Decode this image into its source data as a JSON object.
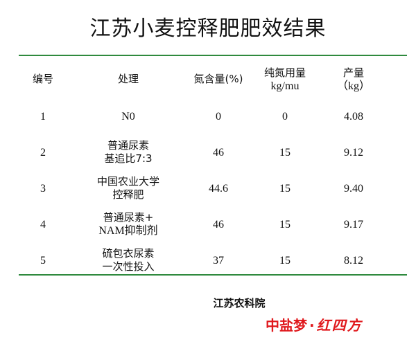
{
  "title": "江苏小麦控释肥肥效结果",
  "table": {
    "headers": {
      "id": [
        "编号"
      ],
      "treatment": [
        "处理"
      ],
      "n_content": [
        "氮含量(%)"
      ],
      "pure_n": [
        "纯氮用量",
        "kg/mu"
      ],
      "yield": [
        "产量",
        "（kg）"
      ]
    },
    "rows": [
      {
        "id": "1",
        "treatment": [
          "N0"
        ],
        "n_content": "0",
        "pure_n": "0",
        "yield": "4.08"
      },
      {
        "id": "2",
        "treatment": [
          "普通尿素",
          "基追比7:3"
        ],
        "n_content": "46",
        "pure_n": "15",
        "yield": "9.12"
      },
      {
        "id": "3",
        "treatment": [
          "中国农业大学",
          "控释肥"
        ],
        "n_content": "44.6",
        "pure_n": "15",
        "yield": "9.40"
      },
      {
        "id": "4",
        "treatment": [
          "普通尿素+",
          "NAM抑制剂"
        ],
        "n_content": "46",
        "pure_n": "15",
        "yield": "9.17"
      },
      {
        "id": "5",
        "treatment": [
          "硫包衣尿素",
          "一次性投入"
        ],
        "n_content": "37",
        "pure_n": "15",
        "yield": "8.12"
      }
    ]
  },
  "source": "江苏农科院",
  "brand": {
    "cn": "中盐梦",
    "dot": "·",
    "script": "红四方"
  },
  "colors": {
    "rule": "#2f8a3e",
    "brand": "#e0181c"
  }
}
